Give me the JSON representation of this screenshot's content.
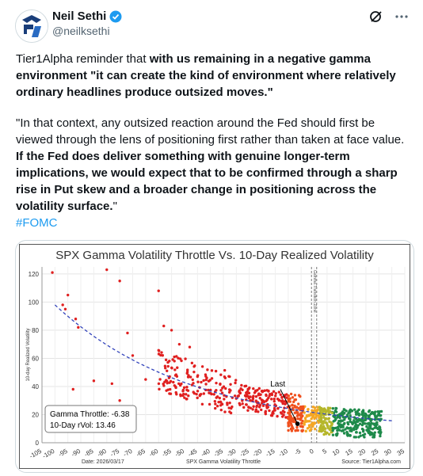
{
  "author": {
    "name": "Neil Sethi",
    "handle": "@neilksethi",
    "avatar_icon": "logo-icon",
    "verified_icon": "verified-badge-icon"
  },
  "tweet": {
    "p1_plain": "Tier1Alpha reminder that ",
    "p1_bold": "with us remaining in a negative gamma environment \"it can create the kind of environment where relatively ordinary headlines produce outsized moves.\"",
    "p2_plain": "\"In that context, any outsized reaction around the Fed should first be viewed through the lens of positioning first rather than taken at face value. ",
    "p2_bold": "If the Fed does deliver something with genuine longer-term implications, we would expect that to be confirmed through a sharp rise in Put skew and a broader change in positioning across the volatility surface.",
    "p2_end": "\"",
    "hashtag": "#FOMC"
  },
  "chart_data": {
    "type": "scatter",
    "title": "SPX Gamma Volatility Throttle Vs. 10-Day Realized Volatility",
    "xlabel": "SPX Gamma Volatility Throttle",
    "ylabel": "10-day Realized Volatility",
    "xlim": [
      -105,
      35
    ],
    "ylim": [
      0,
      125
    ],
    "x_ticks": [
      "-105",
      "-100",
      "-95",
      "-90",
      "-85",
      "-80",
      "-75",
      "-70",
      "-65",
      "-60",
      "-55",
      "-50",
      "-45",
      "-40",
      "-35",
      "-30",
      "-25",
      "-20",
      "-15",
      "-10",
      "-5",
      "0",
      "5",
      "10",
      "15",
      "20",
      "25",
      "30",
      "35"
    ],
    "y_ticks": [
      "0",
      "20",
      "40",
      "60",
      "80",
      "100",
      "120"
    ],
    "zone_label": "Gamma Transition Zone",
    "zone_range": [
      -1,
      1
    ],
    "last_point": {
      "label": "Last",
      "x": -6.38,
      "y": 13.46
    },
    "info_box": [
      "Gamma Throttle: -6.38",
      "10-Day rVol: 13.46"
    ],
    "footer_left": "Date: 2026/03/17",
    "footer_right": "Source: Tier1Alpha.com",
    "grid": true,
    "colors": {
      "negative": "#e02020",
      "transition": "#f5a623",
      "positive": "#1e8a4a",
      "fit": "#3344bb"
    },
    "outliers": [
      {
        "x": -101,
        "y": 121
      },
      {
        "x": -97,
        "y": 98
      },
      {
        "x": -96,
        "y": 95
      },
      {
        "x": -95,
        "y": 105
      },
      {
        "x": -92,
        "y": 88
      },
      {
        "x": -91,
        "y": 82
      },
      {
        "x": -93,
        "y": 38
      },
      {
        "x": -80,
        "y": 123
      },
      {
        "x": -75,
        "y": 115
      },
      {
        "x": -72,
        "y": 78
      },
      {
        "x": -70,
        "y": 62
      },
      {
        "x": -60,
        "y": 108
      },
      {
        "x": -58,
        "y": 83
      },
      {
        "x": -55,
        "y": 80
      },
      {
        "x": -52,
        "y": 70
      },
      {
        "x": -48,
        "y": 68
      },
      {
        "x": -85,
        "y": 44
      },
      {
        "x": -78,
        "y": 42
      },
      {
        "x": -65,
        "y": 45
      },
      {
        "x": -75,
        "y": 30
      }
    ]
  }
}
